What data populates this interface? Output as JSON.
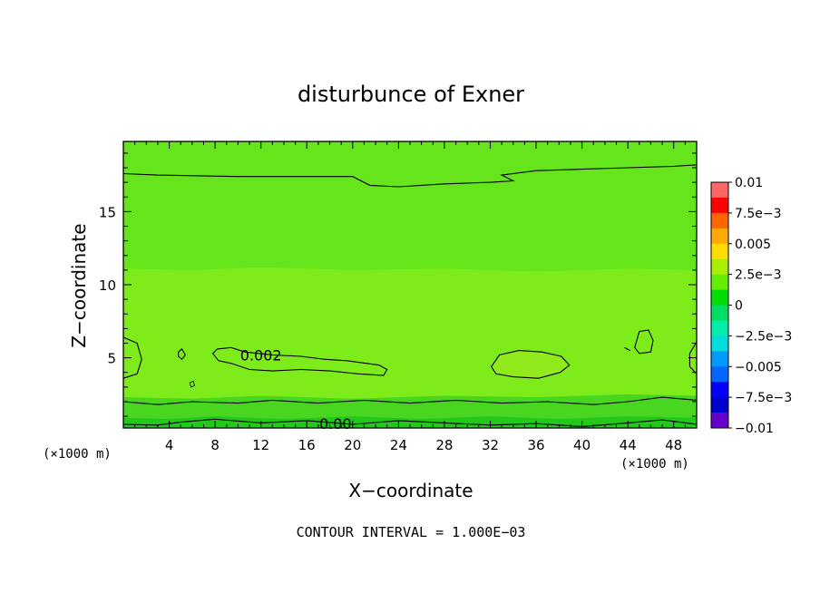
{
  "chart_data": {
    "type": "contour",
    "title": "disturbunce of Exner",
    "xlabel": "X−coordinate",
    "ylabel": "Z−coordinate",
    "x_unit_left": "(×1000 m)",
    "x_unit_right": "(×1000 m)",
    "xlim": [
      0,
      50
    ],
    "ylim": [
      0.2,
      19.8
    ],
    "x_ticks": [
      4,
      8,
      12,
      16,
      20,
      24,
      28,
      32,
      36,
      40,
      44,
      48
    ],
    "y_ticks": [
      5,
      10,
      15
    ],
    "footer": "CONTOUR INTERVAL = 1.000E−03",
    "contour_labels": [
      {
        "text": "0.002",
        "x": 12,
        "y": 5.2
      },
      {
        "text": "0.00",
        "x": 18.5,
        "y": 0.5
      }
    ],
    "colorbar": {
      "tick_labels": [
        "0.01",
        "7.5e−3",
        "0.005",
        "2.5e−3",
        "0",
        "−2.5e−3",
        "−0.005",
        "−7.5e−3",
        "−0.01"
      ],
      "colors": [
        "#ff6666",
        "#ff0000",
        "#ff6600",
        "#ffaa00",
        "#ffdd00",
        "#aaee00",
        "#66ee00",
        "#00dd00",
        "#00dd66",
        "#00eeaa",
        "#00dddd",
        "#0099ff",
        "#0066ff",
        "#0000ff",
        "#0000cc",
        "#6600cc"
      ]
    },
    "fill_colors": {
      "top": "#66e41c",
      "middle": "#7eec1a",
      "bottom_1": "#48d620",
      "bottom_2": "#22c81a",
      "patch": "#92ea1c"
    }
  }
}
